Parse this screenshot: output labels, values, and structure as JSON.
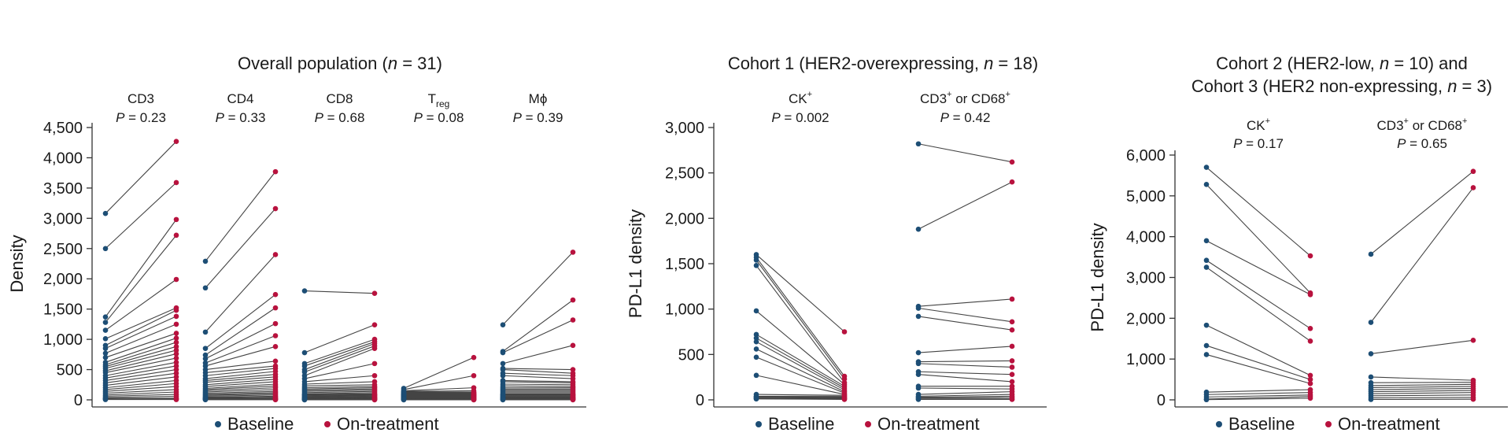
{
  "colors": {
    "baseline": "#1d4e75",
    "on_treatment": "#b8123e",
    "line": "#444444",
    "axis": "#333333"
  },
  "legend": {
    "baseline_label": "Baseline",
    "on_treatment_label": "On-treatment"
  },
  "chart_data": [
    {
      "type": "scatter",
      "title": "Overall population (n = 31)",
      "ylabel": "Density",
      "ylim": [
        0,
        4500
      ],
      "yticks": [
        0,
        500,
        1000,
        1500,
        2000,
        2500,
        3000,
        3500,
        4000,
        4500
      ],
      "ytick_labels": [
        "0",
        "500",
        "1,000",
        "1,500",
        "2,000",
        "2,500",
        "3,000",
        "3,500",
        "4,000",
        "4,500"
      ],
      "groups": [
        {
          "name": "CD3",
          "sub": "",
          "p": "P = 0.23",
          "baseline": [
            3080,
            2500,
            1370,
            1280,
            1150,
            1010,
            900,
            850,
            770,
            700,
            620,
            580,
            550,
            520,
            480,
            450,
            400,
            360,
            320,
            280,
            240,
            200,
            170,
            140,
            110,
            80,
            60,
            40,
            25,
            15,
            5
          ],
          "on_treatment": [
            4270,
            3590,
            2980,
            2720,
            1990,
            1520,
            1480,
            1380,
            1250,
            1100,
            1020,
            950,
            880,
            820,
            760,
            690,
            620,
            560,
            500,
            440,
            380,
            320,
            270,
            220,
            170,
            130,
            90,
            60,
            30,
            15,
            5
          ]
        },
        {
          "name": "CD4",
          "sub": "",
          "p": "P = 0.33",
          "baseline": [
            2290,
            1850,
            1120,
            850,
            740,
            680,
            610,
            560,
            500,
            450,
            400,
            350,
            320,
            290,
            250,
            220,
            190,
            170,
            150,
            130,
            110,
            90,
            75,
            60,
            45,
            35,
            25,
            18,
            12,
            6,
            2
          ],
          "on_treatment": [
            3770,
            3160,
            2400,
            1740,
            1520,
            1260,
            1060,
            880,
            640,
            560,
            520,
            470,
            420,
            380,
            340,
            300,
            260,
            230,
            200,
            170,
            140,
            120,
            100,
            80,
            60,
            45,
            30,
            20,
            12,
            6,
            2
          ]
        },
        {
          "name": "CD8",
          "sub": "",
          "p": "P = 0.68",
          "baseline": [
            1800,
            780,
            600,
            560,
            500,
            460,
            400,
            350,
            300,
            260,
            230,
            200,
            180,
            160,
            140,
            120,
            100,
            90,
            80,
            70,
            60,
            50,
            40,
            32,
            25,
            18,
            12,
            8,
            5,
            3,
            1
          ],
          "on_treatment": [
            1760,
            1240,
            1000,
            960,
            930,
            890,
            850,
            600,
            400,
            300,
            250,
            220,
            200,
            180,
            160,
            140,
            120,
            100,
            90,
            80,
            70,
            60,
            50,
            40,
            32,
            25,
            18,
            12,
            8,
            4,
            1
          ]
        },
        {
          "name": "T",
          "sub": "reg",
          "p": "P = 0.08",
          "baseline": [
            190,
            170,
            150,
            140,
            130,
            120,
            110,
            100,
            95,
            90,
            85,
            80,
            75,
            70,
            65,
            60,
            55,
            50,
            45,
            40,
            35,
            30,
            25,
            22,
            18,
            15,
            12,
            9,
            6,
            3,
            1
          ],
          "on_treatment": [
            700,
            400,
            200,
            150,
            130,
            120,
            110,
            100,
            95,
            90,
            85,
            80,
            75,
            70,
            65,
            60,
            55,
            50,
            45,
            40,
            35,
            30,
            25,
            20,
            16,
            12,
            9,
            6,
            4,
            2,
            1
          ]
        },
        {
          "name": "Mϕ",
          "sub": "",
          "p": "P = 0.39",
          "baseline": [
            1240,
            800,
            780,
            600,
            520,
            500,
            440,
            400,
            320,
            300,
            260,
            230,
            200,
            180,
            160,
            140,
            120,
            100,
            90,
            80,
            70,
            60,
            50,
            42,
            35,
            28,
            20,
            14,
            8,
            4,
            1
          ],
          "on_treatment": [
            2440,
            1650,
            1320,
            900,
            500,
            440,
            400,
            350,
            300,
            280,
            250,
            220,
            200,
            180,
            160,
            140,
            120,
            100,
            90,
            80,
            70,
            60,
            50,
            40,
            32,
            25,
            18,
            12,
            8,
            4,
            1
          ]
        }
      ]
    },
    {
      "type": "scatter",
      "title": "Cohort 1 (HER2-overexpressing, n = 18)",
      "ylabel": "PD-L1 density",
      "ylim": [
        0,
        3000
      ],
      "yticks": [
        0,
        500,
        1000,
        1500,
        2000,
        2500,
        3000
      ],
      "ytick_labels": [
        "0",
        "500",
        "1,000",
        "1,500",
        "2,000",
        "2,500",
        "3,000"
      ],
      "groups": [
        {
          "name": "CK",
          "sup": "+",
          "p": "P = 0.002",
          "baseline": [
            1600,
            1570,
            1540,
            1480,
            980,
            720,
            680,
            640,
            560,
            470,
            270,
            60,
            40,
            35,
            30,
            20,
            15,
            10
          ],
          "on_treatment": [
            750,
            260,
            230,
            190,
            170,
            150,
            130,
            110,
            90,
            75,
            60,
            50,
            40,
            30,
            22,
            15,
            10,
            5
          ]
        },
        {
          "name": "CD3",
          "sup": "+",
          "name2": " or CD68",
          "sup2": "+",
          "p": "P = 0.42",
          "baseline": [
            2820,
            1880,
            1030,
            1010,
            920,
            520,
            420,
            400,
            310,
            280,
            150,
            130,
            60,
            40,
            30,
            20,
            10,
            5
          ],
          "on_treatment": [
            2620,
            2400,
            1110,
            860,
            770,
            590,
            430,
            360,
            280,
            200,
            150,
            120,
            90,
            60,
            40,
            25,
            10,
            5
          ]
        }
      ]
    },
    {
      "type": "scatter",
      "title": "Cohort 2 (HER2-low, n = 10) and",
      "title2": "Cohort 3 (HER2 non-expressing, n = 3)",
      "ylabel": "PD-L1 density",
      "ylim": [
        0,
        6000
      ],
      "yticks": [
        0,
        1000,
        2000,
        3000,
        4000,
        5000,
        6000
      ],
      "ytick_labels": [
        "0",
        "1,000",
        "2,000",
        "3,000",
        "4,000",
        "5,000",
        "6,000"
      ],
      "groups": [
        {
          "name": "CK",
          "sup": "+",
          "p": "P = 0.17",
          "baseline": [
            5700,
            5280,
            3900,
            3420,
            3250,
            1830,
            1330,
            1110,
            190,
            130,
            70,
            20,
            5
          ],
          "on_treatment": [
            3530,
            2620,
            2580,
            1750,
            1440,
            600,
            500,
            400,
            250,
            180,
            120,
            80,
            40
          ]
        },
        {
          "name": "CD3",
          "sup": "+",
          "name2": " or CD68",
          "sup2": "+",
          "p": "P = 0.65",
          "baseline": [
            3570,
            1900,
            1130,
            560,
            420,
            350,
            300,
            250,
            200,
            150,
            100,
            50,
            10
          ],
          "on_treatment": [
            5600,
            5200,
            1460,
            480,
            430,
            380,
            330,
            280,
            230,
            180,
            120,
            60,
            15
          ]
        }
      ]
    }
  ]
}
